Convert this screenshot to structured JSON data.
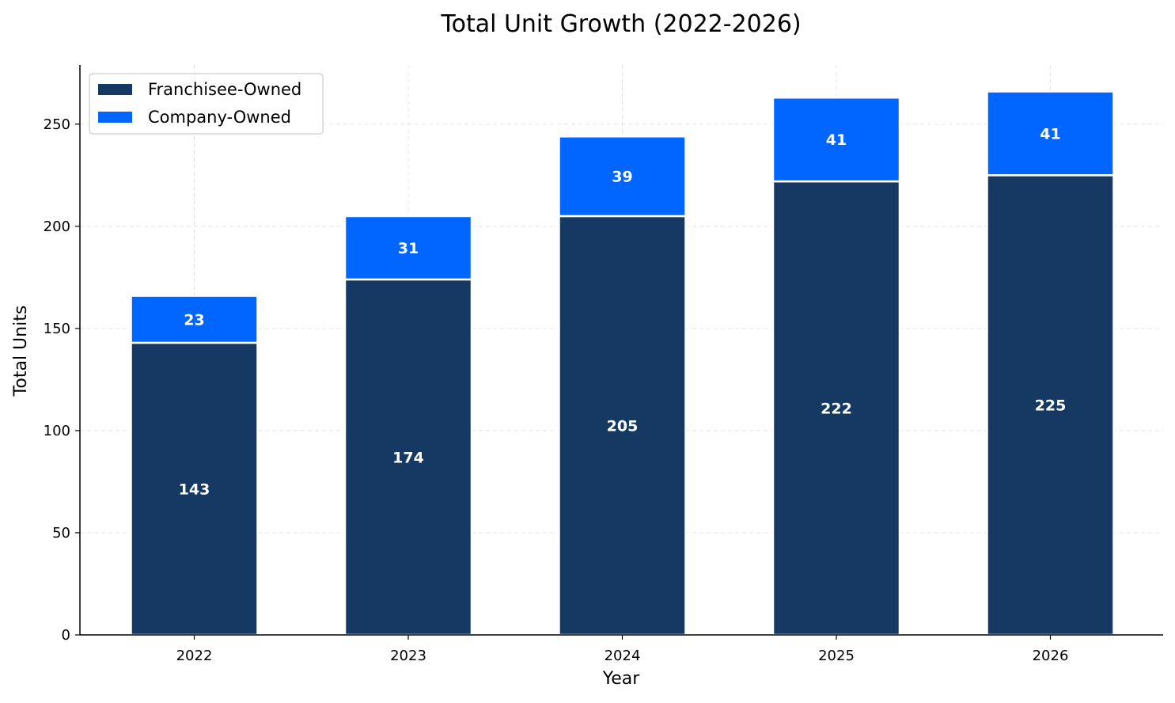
{
  "chart_data": {
    "type": "bar",
    "stacked": true,
    "title": "Total Unit Growth (2022-2026)",
    "xlabel": "Year",
    "ylabel": "Total Units",
    "categories": [
      "2022",
      "2023",
      "2024",
      "2025",
      "2026"
    ],
    "series": [
      {
        "name": "Franchisee-Owned",
        "values": [
          143,
          174,
          205,
          222,
          225
        ],
        "color": "#153962"
      },
      {
        "name": "Company-Owned",
        "values": [
          23,
          31,
          39,
          41,
          41
        ],
        "color": "#0066ff"
      }
    ],
    "ylim": [
      0,
      279
    ],
    "yticks": [
      0,
      50,
      100,
      150,
      200,
      250
    ],
    "grid": true,
    "legend_position": "top-left"
  }
}
